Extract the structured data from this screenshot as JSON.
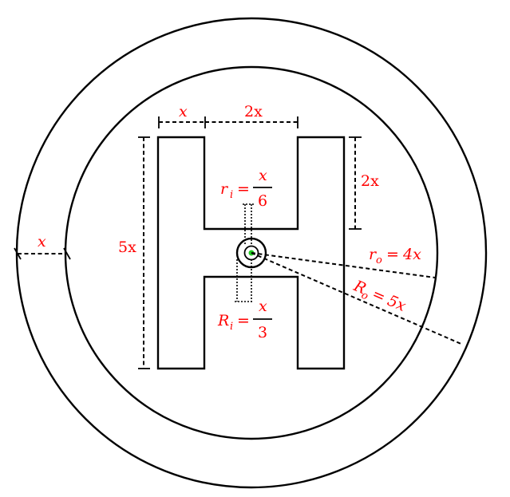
{
  "diagram": {
    "colors": {
      "stroke": "#000000",
      "label": "#ff0000",
      "center_dot": "#22cc22",
      "background": "#ffffff"
    },
    "labels": {
      "arm_width": "x",
      "gap_width": "2x",
      "total_height": "5x",
      "gap_depth": "2x",
      "ring_thickness": "x",
      "r_i": {
        "symbol": "r",
        "sub": "i",
        "eq": "=",
        "num": "x",
        "den": "6"
      },
      "R_i": {
        "symbol": "R",
        "sub": "i",
        "eq": "=",
        "num": "x",
        "den": "3"
      },
      "r_o": {
        "symbol": "r",
        "sub": "o",
        "eq": "=",
        "value": "4x"
      },
      "R_o": {
        "symbol": "R",
        "sub": "o",
        "eq": "=",
        "value": "5x"
      }
    }
  }
}
